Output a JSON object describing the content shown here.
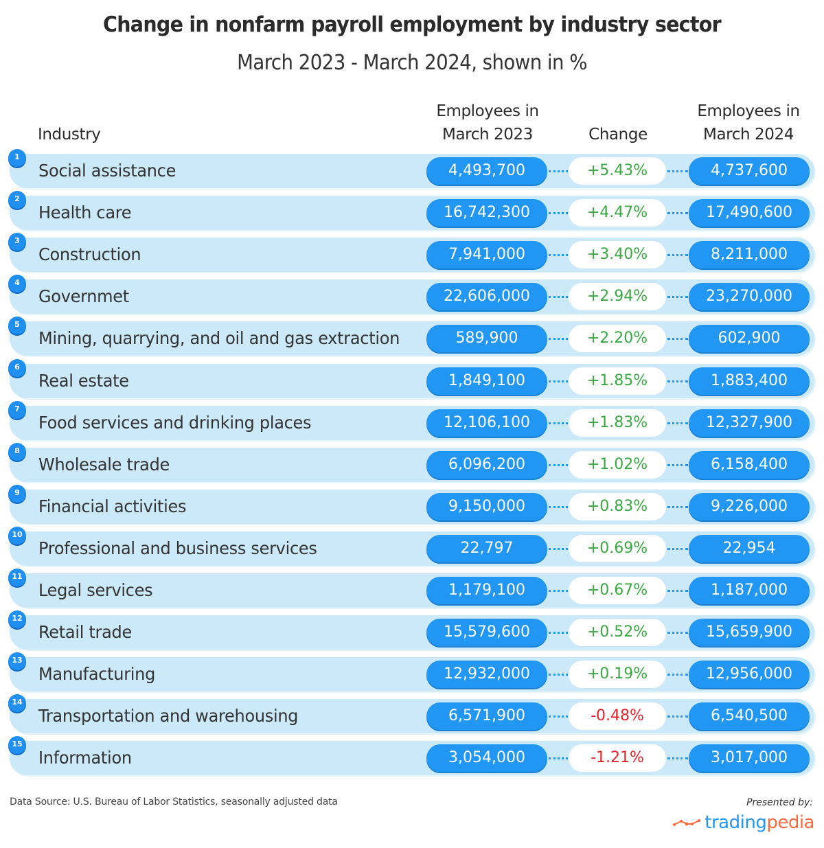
{
  "chart_data": {
    "type": "table",
    "title": "Change in nonfarm payroll employment by industry sector",
    "subtitle": "March 2023 - March 2024, shown in %",
    "columns": [
      "Industry",
      "Employees in March 2023",
      "Change",
      "Employees in March 2024"
    ],
    "colors": {
      "positive": "#3aa843",
      "negative": "#e8212b",
      "pill": "#2196f3",
      "row_bg": "#cbe9f8"
    },
    "rows": [
      {
        "rank": "1",
        "industry": "Social assistance",
        "mar2023": "4,493,700",
        "change": "+5.43%",
        "mar2024": "4,737,600",
        "direction": "up"
      },
      {
        "rank": "2",
        "industry": "Health care",
        "mar2023": "16,742,300",
        "change": "+4.47%",
        "mar2024": "17,490,600",
        "direction": "up"
      },
      {
        "rank": "3",
        "industry": "Construction",
        "mar2023": "7,941,000",
        "change": "+3.40%",
        "mar2024": "8,211,000",
        "direction": "up"
      },
      {
        "rank": "4",
        "industry": "Governmet",
        "mar2023": "22,606,000",
        "change": "+2.94%",
        "mar2024": "23,270,000",
        "direction": "up"
      },
      {
        "rank": "5",
        "industry": "Mining, quarrying, and oil and gas extraction",
        "mar2023": "589,900",
        "change": "+2.20%",
        "mar2024": "602,900",
        "direction": "up"
      },
      {
        "rank": "6",
        "industry": "Real estate",
        "mar2023": "1,849,100",
        "change": "+1.85%",
        "mar2024": "1,883,400",
        "direction": "up"
      },
      {
        "rank": "7",
        "industry": "Food services and drinking places",
        "mar2023": "12,106,100",
        "change": "+1.83%",
        "mar2024": "12,327,900",
        "direction": "up"
      },
      {
        "rank": "8",
        "industry": "Wholesale trade",
        "mar2023": "6,096,200",
        "change": "+1.02%",
        "mar2024": "6,158,400",
        "direction": "up"
      },
      {
        "rank": "9",
        "industry": "Financial activities",
        "mar2023": "9,150,000",
        "change": "+0.83%",
        "mar2024": "9,226,000",
        "direction": "up"
      },
      {
        "rank": "10",
        "industry": "Professional and business services",
        "mar2023": "22,797",
        "change": "+0.69%",
        "mar2024": "22,954",
        "direction": "up"
      },
      {
        "rank": "11",
        "industry": "Legal services",
        "mar2023": "1,179,100",
        "change": "+0.67%",
        "mar2024": "1,187,000",
        "direction": "up"
      },
      {
        "rank": "12",
        "industry": "Retail trade",
        "mar2023": "15,579,600",
        "change": "+0.52%",
        "mar2024": "15,659,900",
        "direction": "up"
      },
      {
        "rank": "13",
        "industry": "Manufacturing",
        "mar2023": "12,932,000",
        "change": "+0.19%",
        "mar2024": "12,956,000",
        "direction": "up"
      },
      {
        "rank": "14",
        "industry": "Transportation and warehousing",
        "mar2023": "6,571,900",
        "change": "-0.48%",
        "mar2024": "6,540,500",
        "direction": "down"
      },
      {
        "rank": "15",
        "industry": "Information",
        "mar2023": "3,054,000",
        "change": "-1.21%",
        "mar2024": "3,017,000",
        "direction": "down"
      }
    ]
  },
  "header": {
    "title": "Change in nonfarm payroll employment by industry sector",
    "subtitle": "March 2023 - March 2024, shown in %"
  },
  "columns": {
    "industry": "Industry",
    "mar2023_line1": "Employees in",
    "mar2023_line2": "March 2023",
    "change": "Change",
    "mar2024_line1": "Employees in",
    "mar2024_line2": "March 2024"
  },
  "footer": {
    "source": "Data Source: U.S. Bureau of Labor Statistics, seasonally adjusted data",
    "presented_by": "Presented by:",
    "logo_part1": "trading",
    "logo_part2": "pedia",
    "logo_icon": "line-chart-icon"
  }
}
